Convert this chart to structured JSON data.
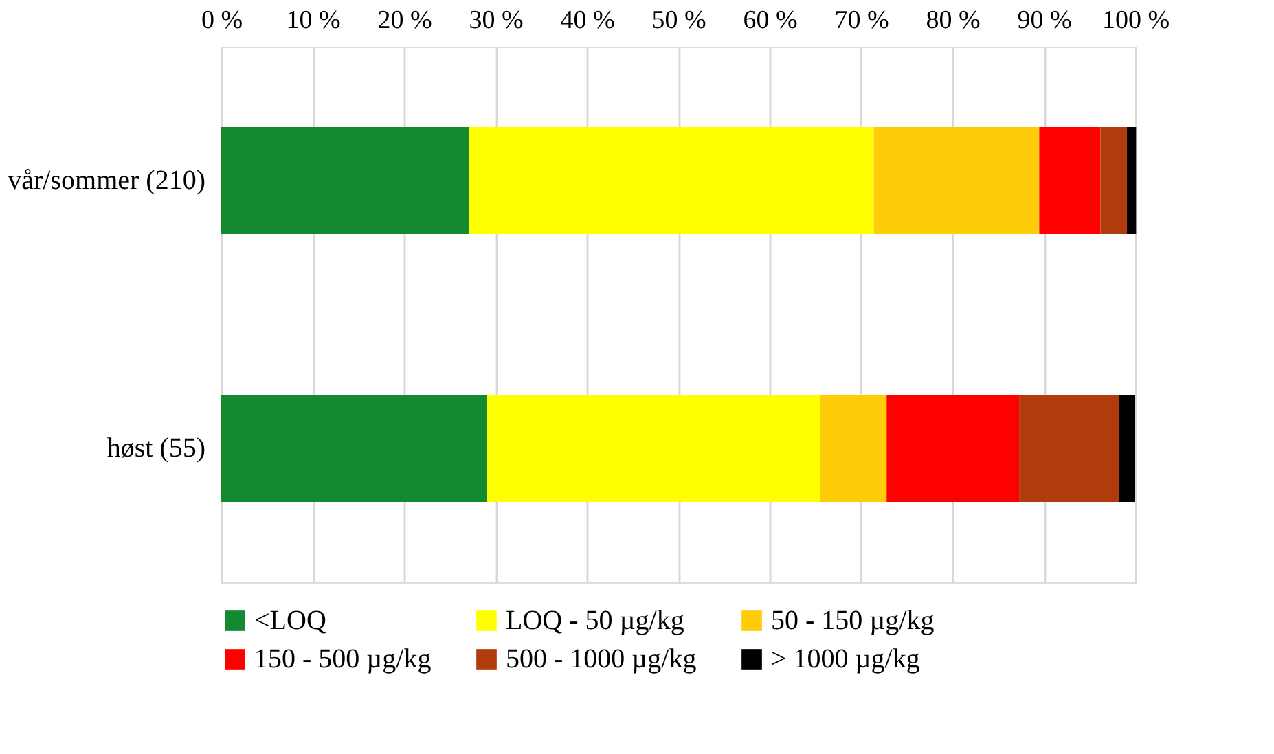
{
  "chart_data": {
    "type": "bar",
    "orientation": "horizontal",
    "stacked": true,
    "categories": [
      "vår/sommer (210)",
      "høst (55)"
    ],
    "series": [
      {
        "name": "<LOQ",
        "color": "#138a30",
        "values": [
          27.1,
          29.1
        ]
      },
      {
        "name": "LOQ - 50 µg/kg",
        "color": "#ffff00",
        "values": [
          44.3,
          36.4
        ]
      },
      {
        "name": "50 - 150 µg/kg",
        "color": "#ffcc0a",
        "values": [
          18.1,
          7.3
        ]
      },
      {
        "name": "150 - 500 µg/kg",
        "color": "#ff0000",
        "values": [
          6.7,
          14.5
        ]
      },
      {
        "name": "500 - 1000 µg/kg",
        "color": "#b03c0e",
        "values": [
          2.9,
          10.9
        ]
      },
      {
        "name": "> 1000 µg/kg",
        "color": "#000000",
        "values": [
          1.0,
          1.8
        ]
      }
    ],
    "xlim": [
      0,
      100
    ],
    "xticks": [
      {
        "value": 0,
        "label": "0 %"
      },
      {
        "value": 10,
        "label": "10 %"
      },
      {
        "value": 20,
        "label": "20 %"
      },
      {
        "value": 30,
        "label": "30 %"
      },
      {
        "value": 40,
        "label": "40 %"
      },
      {
        "value": 50,
        "label": "50 %"
      },
      {
        "value": 60,
        "label": "60 %"
      },
      {
        "value": 70,
        "label": "70 %"
      },
      {
        "value": 80,
        "label": "80 %"
      },
      {
        "value": 90,
        "label": "90 %"
      },
      {
        "value": 100,
        "label": "100 %"
      }
    ],
    "grid": "x",
    "legend": "bottom"
  }
}
